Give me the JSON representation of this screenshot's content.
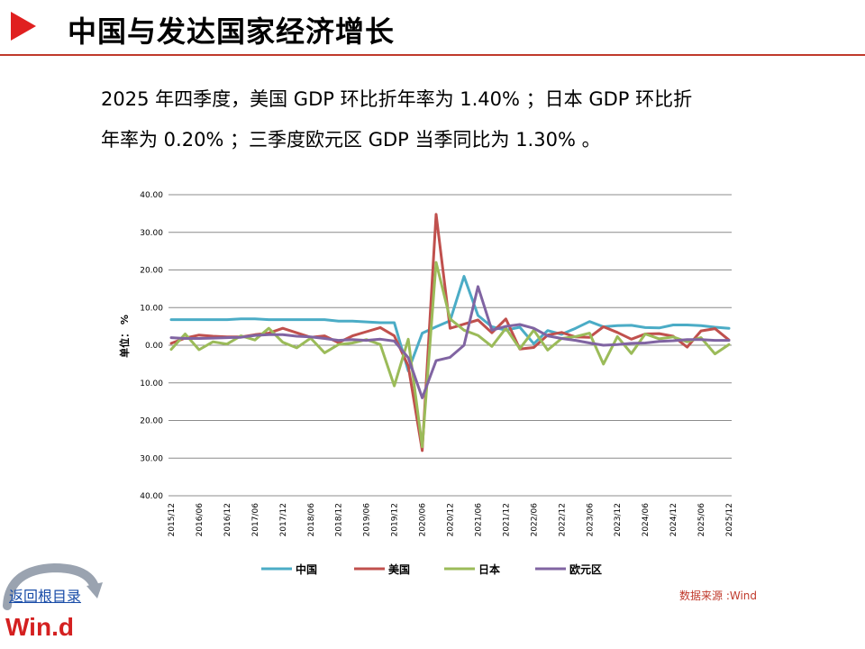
{
  "title": "中国与发达国家经济增长",
  "summary_line1": "2025 年四季度，美国 GDP 环比折年率为 1.40% ；日本 GDP 环比折",
  "summary_line2": "年率为 0.20% ；三季度欧元区 GDP 当季同比为 1.30% 。",
  "footer": {
    "back_link": "返回根目录",
    "logo_text": "Win.d",
    "source": "数据来源 :Wind"
  },
  "colors": {
    "accent": "#e02020",
    "china": "#4bacc6",
    "usa": "#c0504d",
    "japan": "#9bbb59",
    "eurozone": "#8064a2"
  },
  "chart_data": {
    "type": "line",
    "ylabel": "单位： %",
    "ylim": [
      -40,
      40
    ],
    "y_ticks": [
      40,
      30,
      20,
      10,
      0,
      -10,
      -20,
      -30,
      -40
    ],
    "y_tick_labels": [
      "40.00",
      "30.00",
      "20.00",
      "10.00",
      "0.00",
      "10.00",
      "20.00",
      "30.00",
      "40.00"
    ],
    "x_tick_labels": [
      "2015/12",
      "2016/06",
      "2016/12",
      "2017/06",
      "2017/12",
      "2018/06",
      "2018/12",
      "2019/06",
      "2019/12",
      "2020/06",
      "2020/12",
      "2021/06",
      "2021/12",
      "2022/06",
      "2022/12",
      "2023/06",
      "2023/12",
      "2024/06",
      "2024/12",
      "2025/06",
      "2025/12"
    ],
    "x": [
      "2015/12",
      "2016/03",
      "2016/06",
      "2016/09",
      "2016/12",
      "2017/03",
      "2017/06",
      "2017/09",
      "2017/12",
      "2018/03",
      "2018/06",
      "2018/09",
      "2018/12",
      "2019/03",
      "2019/06",
      "2019/09",
      "2019/12",
      "2020/03",
      "2020/06",
      "2020/09",
      "2020/12",
      "2021/03",
      "2021/06",
      "2021/09",
      "2021/12",
      "2022/03",
      "2022/06",
      "2022/09",
      "2022/12",
      "2023/03",
      "2023/06",
      "2023/09",
      "2023/12",
      "2024/03",
      "2024/06",
      "2024/09",
      "2024/12",
      "2025/03",
      "2025/06",
      "2025/09",
      "2025/12"
    ],
    "grid": true,
    "legend": "bottom",
    "series": [
      {
        "name": "中国",
        "color": "#4bacc6",
        "values": [
          6.8,
          6.8,
          6.8,
          6.8,
          6.8,
          7.0,
          7.0,
          6.8,
          6.8,
          6.8,
          6.8,
          6.8,
          6.4,
          6.4,
          6.2,
          6.0,
          6.0,
          -6.8,
          3.2,
          4.9,
          6.5,
          18.3,
          7.9,
          4.9,
          4.0,
          4.8,
          0.4,
          3.9,
          2.9,
          4.5,
          6.3,
          4.9,
          5.2,
          5.3,
          4.7,
          4.6,
          5.4,
          5.4,
          5.2,
          4.8,
          4.5
        ]
      },
      {
        "name": "美国",
        "color": "#c0504d",
        "values": [
          0.5,
          1.9,
          2.7,
          2.4,
          2.2,
          2.2,
          2.8,
          3.2,
          4.5,
          3.3,
          2.1,
          2.5,
          0.7,
          2.5,
          3.6,
          4.7,
          2.5,
          -5.5,
          -28.0,
          34.8,
          4.5,
          5.6,
          6.7,
          3.3,
          7.0,
          -1.0,
          -0.6,
          2.7,
          3.4,
          2.2,
          2.1,
          4.9,
          3.4,
          1.6,
          3.0,
          3.1,
          2.4,
          -0.5,
          3.8,
          4.4,
          1.4
        ]
      },
      {
        "name": "日本",
        "color": "#9bbb59",
        "values": [
          -1.1,
          3.0,
          -1.2,
          0.9,
          0.3,
          2.5,
          1.4,
          4.5,
          0.8,
          -0.7,
          1.9,
          -2.0,
          0.2,
          0.6,
          1.5,
          0.2,
          -10.8,
          1.6,
          -27.0,
          22.0,
          7.0,
          4.0,
          2.6,
          -0.3,
          4.5,
          -0.9,
          4.0,
          -1.3,
          1.8,
          2.3,
          3.2,
          -5.0,
          2.3,
          -2.2,
          3.0,
          1.7,
          2.2,
          0.9,
          2.0,
          -2.3,
          0.2
        ]
      },
      {
        "name": "欧元区",
        "color": "#8064a2",
        "values": [
          2.0,
          1.8,
          1.8,
          1.9,
          2.0,
          2.1,
          2.6,
          2.8,
          2.8,
          2.4,
          2.2,
          1.8,
          1.3,
          1.5,
          1.3,
          1.6,
          1.1,
          -3.3,
          -14.0,
          -4.1,
          -3.2,
          0.0,
          15.6,
          4.0,
          5.0,
          5.5,
          4.5,
          2.5,
          1.8,
          1.3,
          0.6,
          0.0,
          0.2,
          0.5,
          0.6,
          1.0,
          1.2,
          1.5,
          1.5,
          1.3,
          1.3
        ]
      }
    ]
  }
}
